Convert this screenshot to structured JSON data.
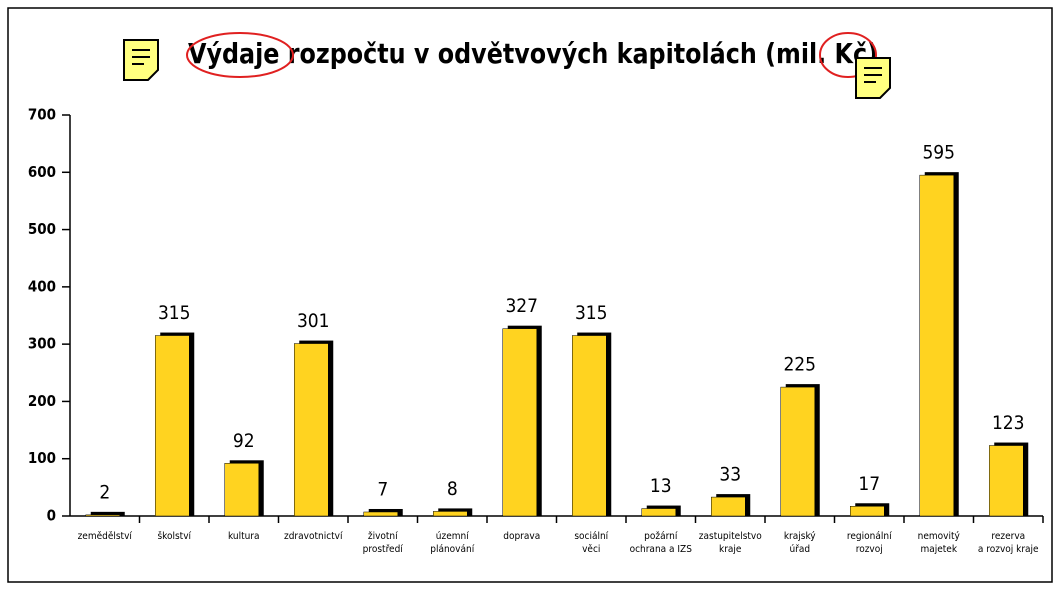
{
  "chart_data": {
    "type": "bar",
    "title": "Výdaje rozpočtu v odvětvových kapitolách (mil. Kč)",
    "categories": [
      "zemědělství",
      "školství",
      "kultura",
      "zdravotnictví",
      "životní\nprostředí",
      "územní\nplánování",
      "doprava",
      "sociální\nvěci",
      "požární\nochrana a IZS",
      "zastupitelstvo\nkraje",
      "krajský\núřad",
      "regionální\nrozvoj",
      "nemovitý\nmajetek",
      "rezerva\na rozvoj kraje"
    ],
    "values": [
      2,
      315,
      92,
      301,
      7,
      8,
      327,
      315,
      13,
      33,
      225,
      17,
      595,
      123
    ],
    "color": "#FFD320",
    "ylim": [
      0,
      700
    ],
    "yticks": [
      0,
      100,
      200,
      300,
      400,
      500,
      600,
      700
    ]
  }
}
